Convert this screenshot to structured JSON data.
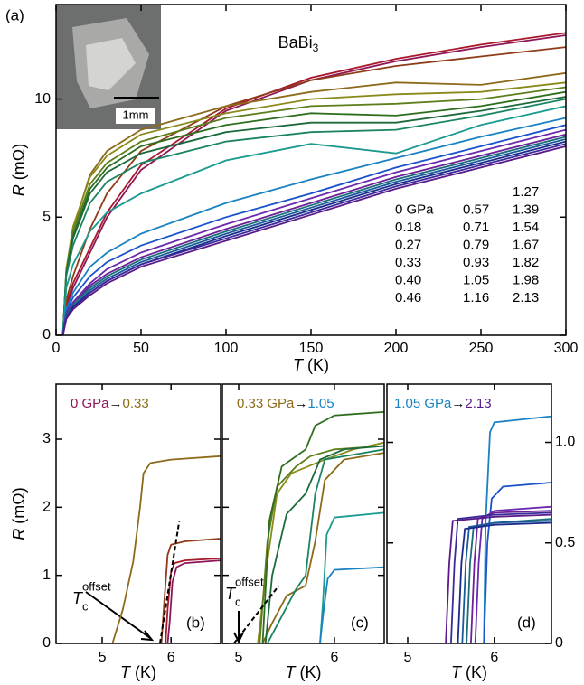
{
  "chart_data": [
    {
      "type": "line",
      "panel_label": "(a)",
      "title": "BaBi",
      "title_sub": "3",
      "inset_label": "1mm",
      "xlabel_symbol": "T",
      "xlabel_unit": "(K)",
      "ylabel_symbol": "R",
      "ylabel_unit": "(mΩ)",
      "xlim": [
        0,
        300
      ],
      "ylim": [
        0,
        14
      ],
      "xticks": [
        0,
        50,
        100,
        150,
        200,
        250,
        300
      ],
      "yticks": [
        0,
        5,
        10
      ],
      "x": [
        4,
        6,
        10,
        20,
        30,
        50,
        100,
        150,
        200,
        250,
        300
      ],
      "series": [
        {
          "name": "0 GPa",
          "color": "#8e1656",
          "values": [
            0,
            1.2,
            2.0,
            3.5,
            5.0,
            7.0,
            9.5,
            10.8,
            11.6,
            12.2,
            12.7
          ]
        },
        {
          "name": "0.18",
          "color": "#a8172c",
          "values": [
            0,
            1.3,
            2.2,
            3.7,
            5.2,
            7.2,
            9.6,
            10.9,
            11.7,
            12.3,
            12.8
          ]
        },
        {
          "name": "0.27",
          "color": "#8e3c18",
          "values": [
            0,
            1.5,
            2.5,
            4.5,
            6.0,
            7.8,
            9.7,
            10.8,
            11.4,
            11.8,
            12.2
          ]
        },
        {
          "name": "0.33",
          "color": "#8c6a1a",
          "values": [
            0,
            2.7,
            4.5,
            6.8,
            7.8,
            8.7,
            9.7,
            10.3,
            10.7,
            10.6,
            11.1
          ]
        },
        {
          "name": "0.40",
          "color": "#8a8a1c",
          "values": [
            0,
            2.8,
            4.6,
            6.7,
            7.6,
            8.5,
            9.4,
            10.0,
            10.2,
            10.3,
            10.7
          ]
        },
        {
          "name": "0.46",
          "color": "#5d7e1c",
          "values": [
            0,
            2.7,
            4.4,
            6.4,
            7.3,
            8.2,
            9.2,
            9.7,
            9.8,
            10.0,
            10.5
          ]
        },
        {
          "name": "0.57",
          "color": "#2d6e1e",
          "values": [
            0,
            2.6,
            4.2,
            6.2,
            7.1,
            8.0,
            8.9,
            9.4,
            9.3,
            9.7,
            10.3
          ]
        },
        {
          "name": "0.71",
          "color": "#1c6a3c",
          "values": [
            0,
            2.6,
            4.1,
            6.0,
            6.9,
            7.7,
            8.6,
            9.0,
            9.0,
            9.5,
            10.1
          ]
        },
        {
          "name": "0.79",
          "color": "#1a8462",
          "values": [
            0,
            2.5,
            3.8,
            5.6,
            6.5,
            7.3,
            8.2,
            8.6,
            8.7,
            9.3,
            10.0
          ]
        },
        {
          "name": "0.93",
          "color": "#1a9a90",
          "values": [
            0,
            2.0,
            3.0,
            4.4,
            5.2,
            6.0,
            7.4,
            8.1,
            7.7,
            8.9,
            9.7
          ]
        },
        {
          "name": "1.05",
          "color": "#1a82c0",
          "values": [
            0,
            1.1,
            1.8,
            2.9,
            3.5,
            4.3,
            5.6,
            6.6,
            7.5,
            8.4,
            9.2
          ]
        },
        {
          "name": "1.16",
          "color": "#1a52cc",
          "values": [
            0,
            1.0,
            1.6,
            2.5,
            3.1,
            3.8,
            5.0,
            6.0,
            7.1,
            8.0,
            8.9
          ]
        },
        {
          "name": "1.27",
          "color": "#6a2ab0",
          "values": [
            0,
            0.9,
            1.4,
            2.2,
            2.8,
            3.5,
            4.7,
            5.8,
            6.9,
            7.8,
            8.7
          ]
        },
        {
          "name": "1.39",
          "color": "#6e2098",
          "values": [
            0,
            0.9,
            1.3,
            2.1,
            2.6,
            3.3,
            4.5,
            5.6,
            6.7,
            7.6,
            8.5
          ]
        },
        {
          "name": "1.54",
          "color": "#1a6e7a",
          "values": [
            0,
            0.8,
            1.3,
            2.0,
            2.5,
            3.2,
            4.4,
            5.5,
            6.6,
            7.5,
            8.4
          ]
        },
        {
          "name": "1.67",
          "color": "#1a5a9a",
          "values": [
            0,
            0.8,
            1.2,
            1.9,
            2.4,
            3.1,
            4.3,
            5.4,
            6.5,
            7.4,
            8.3
          ]
        },
        {
          "name": "1.82",
          "color": "#1a2a8a",
          "values": [
            0,
            0.7,
            1.2,
            1.8,
            2.3,
            3.0,
            4.2,
            5.3,
            6.4,
            7.3,
            8.2
          ]
        },
        {
          "name": "1.98",
          "color": "#3a2a9a",
          "values": [
            0,
            0.7,
            1.1,
            1.8,
            2.3,
            3.0,
            4.1,
            5.2,
            6.3,
            7.2,
            8.1
          ]
        },
        {
          "name": "2.13",
          "color": "#5a1a8a",
          "values": [
            0,
            0.7,
            1.1,
            1.7,
            2.2,
            2.9,
            4.0,
            5.1,
            6.2,
            7.1,
            8.0
          ]
        }
      ]
    },
    {
      "type": "line",
      "panel_label": "(b)",
      "annotation_from": "0 GPa",
      "annotation_arrow": "→",
      "annotation_to": "0.33",
      "tc_label": {
        "main": "T",
        "sub": "c",
        "sup": "offset"
      },
      "tangent": {
        "x": [
          5.84,
          6.12
        ],
        "y": [
          0,
          1.8
        ]
      },
      "xlabel_symbol": "T",
      "xlabel_unit": "(K)",
      "ylabel_symbol": "R",
      "ylabel_unit": "(mΩ)",
      "xlim": [
        4.33,
        6.72
      ],
      "ylim": [
        0,
        3.81
      ],
      "xticks": [
        5,
        6
      ],
      "yticks": [
        0,
        1,
        2,
        3
      ],
      "series": [
        {
          "color": "#8e1656",
          "x": [
            4.33,
            5.95,
            5.98,
            6.02,
            6.08,
            6.2,
            6.72
          ],
          "values": [
            0,
            0,
            0.3,
            0.9,
            1.12,
            1.18,
            1.22
          ]
        },
        {
          "color": "#a8172c",
          "x": [
            4.33,
            5.92,
            5.95,
            6.0,
            6.05,
            6.2,
            6.72
          ],
          "values": [
            0,
            0,
            0.5,
            1.05,
            1.18,
            1.22,
            1.25
          ]
        },
        {
          "color": "#8e3c18",
          "x": [
            4.33,
            5.86,
            5.9,
            5.95,
            6.0,
            6.2,
            6.72
          ],
          "values": [
            0,
            0,
            0.6,
            1.3,
            1.45,
            1.5,
            1.54
          ]
        },
        {
          "color": "#8c6a1a",
          "x": [
            4.33,
            5.15,
            5.3,
            5.45,
            5.55,
            5.6,
            5.7,
            6.0,
            6.72
          ],
          "values": [
            0,
            0,
            0.5,
            1.2,
            2.0,
            2.5,
            2.65,
            2.7,
            2.75
          ]
        }
      ]
    },
    {
      "type": "line",
      "annotation_from": "0.33 GPa",
      "annotation_arrow": "→",
      "annotation_to": "1.05",
      "panel_label": "(c)",
      "tc_label": {
        "main": "T",
        "sub": "c",
        "sup": "offset"
      },
      "tangent": {
        "x": [
          4.95,
          5.42
        ],
        "y": [
          0,
          0.85
        ]
      },
      "xlabel_symbol": "T",
      "xlabel_unit": "(K)",
      "xlim": [
        4.83,
        6.52
      ],
      "ylim": [
        0,
        3.81
      ],
      "xticks": [
        5,
        6
      ],
      "yticks": [
        0,
        1,
        2,
        3
      ],
      "ytick_labels": false,
      "series": [
        {
          "color": "#8c6a1a",
          "x": [
            4.83,
            5.25,
            5.35,
            5.5,
            5.7,
            5.8,
            5.9,
            6.1,
            6.52
          ],
          "values": [
            0,
            0,
            0.3,
            0.7,
            0.85,
            1.5,
            2.4,
            2.7,
            2.8
          ]
        },
        {
          "color": "#8a8a1c",
          "x": [
            4.83,
            5.2,
            5.3,
            5.4,
            5.55,
            5.9,
            6.2,
            6.52
          ],
          "values": [
            0,
            0,
            1.2,
            2.2,
            2.5,
            2.7,
            2.85,
            2.95
          ]
        },
        {
          "color": "#5d7e1c",
          "x": [
            4.83,
            5.22,
            5.3,
            5.4,
            5.6,
            5.75,
            6.0,
            6.52
          ],
          "values": [
            0,
            0,
            1.5,
            2.3,
            2.6,
            2.75,
            2.85,
            2.9
          ]
        },
        {
          "color": "#2d6e1e",
          "x": [
            4.83,
            5.25,
            5.32,
            5.45,
            5.7,
            5.8,
            6.0,
            6.52
          ],
          "values": [
            0,
            0,
            1.8,
            2.6,
            2.85,
            3.2,
            3.35,
            3.4
          ]
        },
        {
          "color": "#1c6a3c",
          "x": [
            4.83,
            5.28,
            5.35,
            5.5,
            5.7,
            5.85,
            6.1,
            6.52
          ],
          "values": [
            0,
            0,
            1.0,
            1.9,
            2.2,
            2.7,
            2.85,
            2.9
          ]
        },
        {
          "color": "#1a8462",
          "x": [
            4.83,
            5.3,
            5.45,
            5.6,
            5.7,
            5.8,
            5.9,
            6.52
          ],
          "values": [
            0,
            0,
            0.4,
            0.8,
            1.0,
            2.2,
            2.7,
            2.85
          ]
        },
        {
          "color": "#1a9a90",
          "x": [
            4.83,
            5.85,
            5.88,
            5.92,
            6.0,
            6.52
          ],
          "values": [
            0,
            0,
            0.6,
            1.6,
            1.85,
            1.92
          ]
        },
        {
          "color": "#1a82c0",
          "x": [
            4.83,
            5.85,
            5.88,
            5.93,
            6.0,
            6.52
          ],
          "values": [
            0,
            0,
            0.4,
            0.95,
            1.08,
            1.12
          ]
        }
      ]
    },
    {
      "type": "line",
      "panel_label": "(d)",
      "annotation_from": "1.05 GPa",
      "annotation_arrow": "→",
      "annotation_to": "2.13",
      "xlabel_symbol": "T",
      "xlabel_unit": "(K)",
      "xlim": [
        4.76,
        6.66
      ],
      "ylim": [
        0,
        1.29
      ],
      "xticks": [
        5,
        6
      ],
      "yticks": [
        0,
        0.5,
        {
          "value": 1,
          "label": "1.0"
        }
      ],
      "yaxis_position": "right",
      "series": [
        {
          "color": "#1a82c0",
          "x": [
            4.76,
            5.88,
            5.9,
            5.95,
            6.0,
            6.66
          ],
          "values": [
            0,
            0,
            0.6,
            1.05,
            1.1,
            1.13
          ]
        },
        {
          "color": "#1a52cc",
          "x": [
            4.76,
            5.88,
            5.92,
            5.97,
            6.1,
            6.66
          ],
          "values": [
            0,
            0,
            0.5,
            0.72,
            0.78,
            0.8
          ]
        },
        {
          "color": "#6a2ab0",
          "x": [
            4.76,
            5.78,
            5.82,
            5.86,
            6.0,
            6.66
          ],
          "values": [
            0,
            0,
            0.4,
            0.62,
            0.66,
            0.68
          ]
        },
        {
          "color": "#6e2098",
          "x": [
            4.76,
            5.73,
            5.77,
            5.81,
            6.0,
            6.66
          ],
          "values": [
            0,
            0,
            0.4,
            0.62,
            0.65,
            0.66
          ]
        },
        {
          "color": "#1a6e7a",
          "x": [
            4.76,
            5.68,
            5.72,
            5.76,
            6.0,
            6.66
          ],
          "values": [
            0,
            0,
            0.4,
            0.58,
            0.6,
            0.62
          ]
        },
        {
          "color": "#1a5a9a",
          "x": [
            4.76,
            5.63,
            5.67,
            5.71,
            6.0,
            6.66
          ],
          "values": [
            0,
            0,
            0.4,
            0.58,
            0.6,
            0.61
          ]
        },
        {
          "color": "#1a2a8a",
          "x": [
            4.76,
            5.58,
            5.62,
            5.66,
            6.0,
            6.66
          ],
          "values": [
            0,
            0,
            0.4,
            0.57,
            0.59,
            0.6
          ]
        },
        {
          "color": "#3a2a9a",
          "x": [
            4.76,
            5.5,
            5.54,
            5.58,
            6.0,
            6.66
          ],
          "values": [
            0,
            0,
            0.4,
            0.62,
            0.64,
            0.65
          ]
        },
        {
          "color": "#5a1a8a",
          "x": [
            4.76,
            5.44,
            5.48,
            5.52,
            6.0,
            6.66
          ],
          "values": [
            0,
            0,
            0.4,
            0.61,
            0.63,
            0.64
          ]
        }
      ]
    }
  ]
}
